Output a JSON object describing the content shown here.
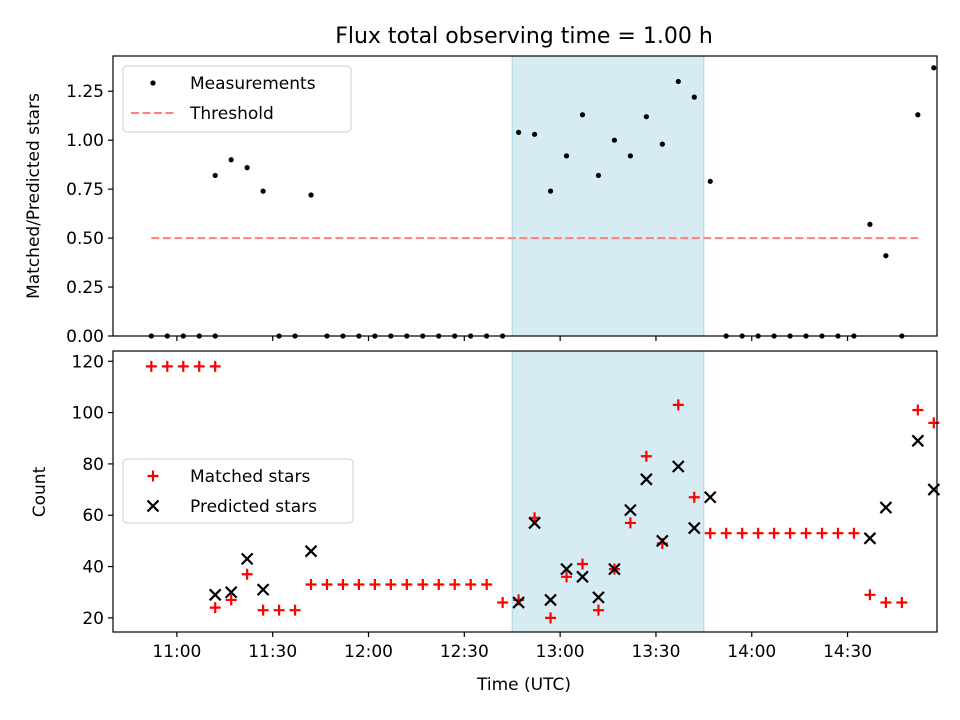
{
  "figure": {
    "title": "Flux total observing time = 1.00 h"
  },
  "chart_data": [
    {
      "type": "scatter",
      "title": "Flux total observing time = 1.00 h",
      "xlabel": "",
      "ylabel": "Matched/Predicted stars",
      "x_axis": "time (UTC), hours",
      "xlim": [
        "10:40",
        "14:58"
      ],
      "ylim": [
        0,
        1.43
      ],
      "yticks": [
        0.0,
        0.25,
        0.5,
        0.75,
        1.0,
        1.25
      ],
      "ytick_labels": [
        "0.00",
        "0.25",
        "0.50",
        "0.75",
        "1.00",
        "1.25"
      ],
      "shaded_interval": [
        "12:45",
        "13:45"
      ],
      "shade_color": "#add8e6",
      "legend": {
        "location": "upper left",
        "entries": [
          "Measurements",
          "Threshold"
        ]
      },
      "series": [
        {
          "name": "Measurements",
          "marker": "dot",
          "color": "#000000",
          "points": [
            [
              "10:52",
              0
            ],
            [
              "10:57",
              0
            ],
            [
              "11:02",
              0
            ],
            [
              "11:07",
              0
            ],
            [
              "11:12",
              0
            ],
            [
              "11:12",
              0.82
            ],
            [
              "11:17",
              0.9
            ],
            [
              "11:22",
              0.86
            ],
            [
              "11:27",
              0.74
            ],
            [
              "11:32",
              0
            ],
            [
              "11:37",
              0
            ],
            [
              "11:42",
              0.72
            ],
            [
              "11:47",
              0
            ],
            [
              "11:52",
              0
            ],
            [
              "11:57",
              0
            ],
            [
              "12:02",
              0
            ],
            [
              "12:07",
              0
            ],
            [
              "12:12",
              0
            ],
            [
              "12:17",
              0
            ],
            [
              "12:22",
              0
            ],
            [
              "12:27",
              0
            ],
            [
              "12:32",
              0
            ],
            [
              "12:37",
              0
            ],
            [
              "12:42",
              0
            ],
            [
              "12:47",
              1.04
            ],
            [
              "12:52",
              1.03
            ],
            [
              "12:57",
              0.74
            ],
            [
              "13:02",
              0.92
            ],
            [
              "13:07",
              1.13
            ],
            [
              "13:12",
              0.82
            ],
            [
              "13:17",
              1.0
            ],
            [
              "13:22",
              0.92
            ],
            [
              "13:27",
              1.12
            ],
            [
              "13:32",
              0.98
            ],
            [
              "13:37",
              1.3
            ],
            [
              "13:42",
              1.22
            ],
            [
              "13:47",
              0.79
            ],
            [
              "13:52",
              0
            ],
            [
              "13:57",
              0
            ],
            [
              "14:02",
              0
            ],
            [
              "14:07",
              0
            ],
            [
              "14:12",
              0
            ],
            [
              "14:17",
              0
            ],
            [
              "14:22",
              0
            ],
            [
              "14:27",
              0
            ],
            [
              "14:32",
              0
            ],
            [
              "14:37",
              0.57
            ],
            [
              "14:42",
              0.41
            ],
            [
              "14:47",
              0
            ],
            [
              "14:52",
              1.13
            ],
            [
              "14:57",
              1.37
            ]
          ]
        },
        {
          "name": "Threshold",
          "style": "dashed",
          "color": "#ff7f7f",
          "points": [
            [
              "10:52",
              0.5
            ],
            [
              "14:53",
              0.5
            ]
          ]
        }
      ]
    },
    {
      "type": "scatter",
      "xlabel": "Time (UTC)",
      "ylabel": "Count",
      "xlim": [
        "10:40",
        "14:58"
      ],
      "ylim": [
        14.5,
        124
      ],
      "xticks": [
        "11:00",
        "11:30",
        "12:00",
        "12:30",
        "13:00",
        "13:30",
        "14:00",
        "14:30"
      ],
      "yticks": [
        20,
        40,
        60,
        80,
        100,
        120
      ],
      "ytick_labels": [
        "20",
        "40",
        "60",
        "80",
        "100",
        "120"
      ],
      "shaded_interval": [
        "12:45",
        "13:45"
      ],
      "shade_color": "#add8e6",
      "legend": {
        "location": "center left",
        "entries": [
          "Matched stars",
          "Predicted stars"
        ]
      },
      "series": [
        {
          "name": "Matched stars",
          "marker": "plus",
          "color": "#ff0000",
          "points": [
            [
              "10:52",
              118
            ],
            [
              "10:57",
              118
            ],
            [
              "11:02",
              118
            ],
            [
              "11:07",
              118
            ],
            [
              "11:12",
              118
            ],
            [
              "11:12",
              24
            ],
            [
              "11:17",
              27
            ],
            [
              "11:22",
              37
            ],
            [
              "11:27",
              23
            ],
            [
              "11:32",
              23
            ],
            [
              "11:37",
              23
            ],
            [
              "11:42",
              33
            ],
            [
              "11:47",
              33
            ],
            [
              "11:52",
              33
            ],
            [
              "11:57",
              33
            ],
            [
              "12:02",
              33
            ],
            [
              "12:07",
              33
            ],
            [
              "12:12",
              33
            ],
            [
              "12:17",
              33
            ],
            [
              "12:22",
              33
            ],
            [
              "12:27",
              33
            ],
            [
              "12:32",
              33
            ],
            [
              "12:37",
              33
            ],
            [
              "12:42",
              26
            ],
            [
              "12:47",
              27
            ],
            [
              "12:52",
              59
            ],
            [
              "12:57",
              20
            ],
            [
              "13:02",
              36
            ],
            [
              "13:07",
              41
            ],
            [
              "13:12",
              23
            ],
            [
              "13:17",
              39
            ],
            [
              "13:22",
              57
            ],
            [
              "13:27",
              83
            ],
            [
              "13:32",
              49
            ],
            [
              "13:37",
              103
            ],
            [
              "13:42",
              67
            ],
            [
              "13:47",
              53
            ],
            [
              "13:52",
              53
            ],
            [
              "13:57",
              53
            ],
            [
              "14:02",
              53
            ],
            [
              "14:07",
              53
            ],
            [
              "14:12",
              53
            ],
            [
              "14:17",
              53
            ],
            [
              "14:22",
              53
            ],
            [
              "14:27",
              53
            ],
            [
              "14:32",
              53
            ],
            [
              "14:37",
              29
            ],
            [
              "14:42",
              26
            ],
            [
              "14:47",
              26
            ],
            [
              "14:52",
              101
            ],
            [
              "14:57",
              96
            ]
          ]
        },
        {
          "name": "Predicted stars",
          "marker": "x",
          "color": "#000000",
          "points": [
            [
              "11:12",
              29
            ],
            [
              "11:17",
              30
            ],
            [
              "11:22",
              43
            ],
            [
              "11:27",
              31
            ],
            [
              "11:42",
              46
            ],
            [
              "12:47",
              26
            ],
            [
              "12:52",
              57
            ],
            [
              "12:57",
              27
            ],
            [
              "13:02",
              39
            ],
            [
              "13:07",
              36
            ],
            [
              "13:12",
              28
            ],
            [
              "13:17",
              39
            ],
            [
              "13:22",
              62
            ],
            [
              "13:27",
              74
            ],
            [
              "13:32",
              50
            ],
            [
              "13:37",
              79
            ],
            [
              "13:42",
              55
            ],
            [
              "13:47",
              67
            ],
            [
              "14:37",
              51
            ],
            [
              "14:42",
              63
            ],
            [
              "14:52",
              89
            ],
            [
              "14:57",
              70
            ]
          ]
        }
      ]
    }
  ]
}
